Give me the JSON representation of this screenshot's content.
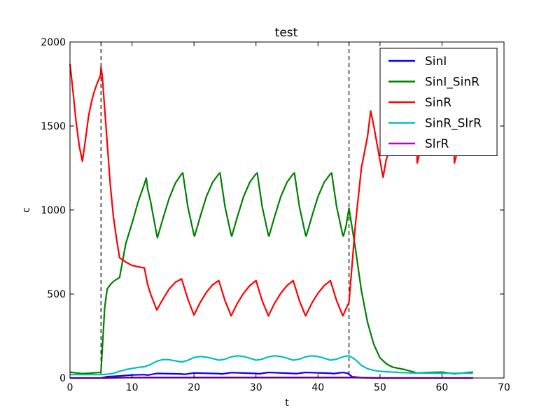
{
  "chart_data": {
    "type": "line",
    "title": "test",
    "xlabel": "t",
    "ylabel": "c",
    "xlim": [
      0,
      70
    ],
    "ylim": [
      0,
      2000
    ],
    "xticks": [
      0,
      10,
      20,
      30,
      40,
      50,
      60,
      70
    ],
    "yticks": [
      0,
      500,
      1000,
      1500,
      2000
    ],
    "grid": false,
    "legend_position": "top-right",
    "vlines": [
      5,
      45
    ],
    "series": [
      {
        "name": "SinI",
        "color": "#0000ff",
        "points": [
          [
            0,
            0
          ],
          [
            5,
            0
          ],
          [
            6,
            8
          ],
          [
            8,
            12
          ],
          [
            10,
            18
          ],
          [
            12,
            20
          ],
          [
            12.5,
            17
          ],
          [
            14,
            27
          ],
          [
            18,
            24
          ],
          [
            18.5,
            22
          ],
          [
            20,
            30
          ],
          [
            24,
            26
          ],
          [
            24.5,
            24
          ],
          [
            26,
            32
          ],
          [
            30,
            27
          ],
          [
            30.5,
            25
          ],
          [
            32,
            33
          ],
          [
            36,
            27
          ],
          [
            36.5,
            26
          ],
          [
            38,
            33
          ],
          [
            42,
            28
          ],
          [
            42.5,
            26
          ],
          [
            44,
            33
          ],
          [
            44.8,
            28
          ],
          [
            45.5,
            8
          ],
          [
            47,
            2
          ],
          [
            50,
            0
          ],
          [
            65,
            0
          ]
        ]
      },
      {
        "name": "SinI_SinR",
        "color": "#008000",
        "points": [
          [
            0,
            35
          ],
          [
            1,
            30
          ],
          [
            2,
            26
          ],
          [
            3,
            28
          ],
          [
            4,
            31
          ],
          [
            4.9,
            33
          ],
          [
            5,
            40
          ],
          [
            5.3,
            230
          ],
          [
            5.6,
            420
          ],
          [
            6,
            530
          ],
          [
            6.5,
            555
          ],
          [
            7,
            575
          ],
          [
            8,
            598
          ],
          [
            8.5,
            700
          ],
          [
            9,
            800
          ],
          [
            10,
            920
          ],
          [
            11,
            1050
          ],
          [
            12,
            1155
          ],
          [
            12.3,
            1190
          ],
          [
            12.5,
            1130
          ],
          [
            13,
            1050
          ],
          [
            14,
            850
          ],
          [
            14.1,
            835
          ],
          [
            15,
            950
          ],
          [
            16,
            1070
          ],
          [
            17,
            1160
          ],
          [
            18,
            1215
          ],
          [
            18.2,
            1220
          ],
          [
            19,
            1020
          ],
          [
            20,
            850
          ],
          [
            20.1,
            845
          ],
          [
            21,
            960
          ],
          [
            22,
            1080
          ],
          [
            23,
            1165
          ],
          [
            24,
            1215
          ],
          [
            24.2,
            1220
          ],
          [
            25,
            1020
          ],
          [
            26,
            850
          ],
          [
            26.1,
            845
          ],
          [
            27,
            960
          ],
          [
            28,
            1080
          ],
          [
            29,
            1165
          ],
          [
            30,
            1215
          ],
          [
            30.2,
            1220
          ],
          [
            31,
            1020
          ],
          [
            32,
            850
          ],
          [
            32.1,
            845
          ],
          [
            33,
            960
          ],
          [
            34,
            1080
          ],
          [
            35,
            1165
          ],
          [
            36,
            1215
          ],
          [
            36.2,
            1220
          ],
          [
            37,
            1020
          ],
          [
            38,
            850
          ],
          [
            38.1,
            845
          ],
          [
            39,
            960
          ],
          [
            40,
            1080
          ],
          [
            41,
            1165
          ],
          [
            42,
            1215
          ],
          [
            42.2,
            1220
          ],
          [
            43,
            1020
          ],
          [
            44,
            850
          ],
          [
            44.1,
            845
          ],
          [
            44.5,
            900
          ],
          [
            45,
            1010
          ],
          [
            46,
            780
          ],
          [
            47,
            520
          ],
          [
            48,
            330
          ],
          [
            49,
            200
          ],
          [
            50,
            120
          ],
          [
            51,
            85
          ],
          [
            52,
            65
          ],
          [
            54,
            50
          ],
          [
            56,
            30
          ],
          [
            58,
            33
          ],
          [
            60,
            35
          ],
          [
            62,
            25
          ],
          [
            65,
            35
          ]
        ]
      },
      {
        "name": "SinR",
        "color": "#ff0000",
        "points": [
          [
            0,
            1870
          ],
          [
            0.5,
            1700
          ],
          [
            1,
            1520
          ],
          [
            1.5,
            1380
          ],
          [
            2,
            1290
          ],
          [
            2.5,
            1420
          ],
          [
            3,
            1560
          ],
          [
            3.5,
            1650
          ],
          [
            4,
            1715
          ],
          [
            4.5,
            1765
          ],
          [
            4.9,
            1800
          ],
          [
            5,
            1850
          ],
          [
            5.2,
            1800
          ],
          [
            5.5,
            1650
          ],
          [
            6,
            1400
          ],
          [
            6.5,
            1150
          ],
          [
            7,
            960
          ],
          [
            7.5,
            830
          ],
          [
            8,
            715
          ],
          [
            9,
            690
          ],
          [
            10,
            670
          ],
          [
            11,
            662
          ],
          [
            12,
            655
          ],
          [
            12.5,
            560
          ],
          [
            13,
            500
          ],
          [
            14,
            405
          ],
          [
            15,
            470
          ],
          [
            16,
            530
          ],
          [
            17,
            570
          ],
          [
            18,
            590
          ],
          [
            19,
            470
          ],
          [
            20,
            375
          ],
          [
            21,
            450
          ],
          [
            22,
            510
          ],
          [
            23,
            555
          ],
          [
            24,
            580
          ],
          [
            25,
            460
          ],
          [
            26,
            370
          ],
          [
            27,
            445
          ],
          [
            28,
            505
          ],
          [
            29,
            550
          ],
          [
            30,
            580
          ],
          [
            31,
            460
          ],
          [
            32,
            370
          ],
          [
            33,
            445
          ],
          [
            34,
            505
          ],
          [
            35,
            550
          ],
          [
            36,
            580
          ],
          [
            37,
            460
          ],
          [
            38,
            370
          ],
          [
            39,
            445
          ],
          [
            40,
            505
          ],
          [
            41,
            550
          ],
          [
            42,
            580
          ],
          [
            43,
            460
          ],
          [
            44,
            370
          ],
          [
            45,
            450
          ],
          [
            46,
            900
          ],
          [
            47,
            1250
          ],
          [
            48,
            1440
          ],
          [
            48.5,
            1590
          ],
          [
            49,
            1500
          ],
          [
            50,
            1295
          ],
          [
            50.5,
            1195
          ],
          [
            51,
            1300
          ],
          [
            52,
            1400
          ],
          [
            53,
            1460
          ],
          [
            54,
            1500
          ],
          [
            55,
            1520
          ],
          [
            55.8,
            1530
          ],
          [
            56,
            1280
          ],
          [
            57,
            1420
          ],
          [
            58,
            1500
          ],
          [
            59,
            1520
          ],
          [
            60,
            1530
          ],
          [
            61,
            1535
          ],
          [
            61.8,
            1540
          ],
          [
            62,
            1280
          ],
          [
            63,
            1420
          ],
          [
            64,
            1500
          ],
          [
            65,
            1520
          ]
        ]
      },
      {
        "name": "SinR_SlrR",
        "color": "#00bfbf",
        "points": [
          [
            0,
            20
          ],
          [
            5,
            20
          ],
          [
            6,
            22
          ],
          [
            7,
            28
          ],
          [
            8,
            40
          ],
          [
            9,
            50
          ],
          [
            10,
            57
          ],
          [
            11,
            63
          ],
          [
            12,
            67
          ],
          [
            13,
            80
          ],
          [
            14,
            100
          ],
          [
            15,
            110
          ],
          [
            16,
            109
          ],
          [
            17,
            102
          ],
          [
            18,
            95
          ],
          [
            19,
            105
          ],
          [
            20,
            122
          ],
          [
            21,
            128
          ],
          [
            22,
            124
          ],
          [
            23,
            116
          ],
          [
            24,
            106
          ],
          [
            25,
            112
          ],
          [
            26,
            126
          ],
          [
            27,
            132
          ],
          [
            28,
            128
          ],
          [
            29,
            118
          ],
          [
            30,
            106
          ],
          [
            31,
            112
          ],
          [
            32,
            126
          ],
          [
            33,
            132
          ],
          [
            34,
            128
          ],
          [
            35,
            118
          ],
          [
            36,
            106
          ],
          [
            37,
            112
          ],
          [
            38,
            126
          ],
          [
            39,
            132
          ],
          [
            40,
            128
          ],
          [
            41,
            118
          ],
          [
            42,
            106
          ],
          [
            43,
            112
          ],
          [
            44,
            126
          ],
          [
            45,
            133
          ],
          [
            46,
            110
          ],
          [
            47,
            75
          ],
          [
            48,
            55
          ],
          [
            49,
            45
          ],
          [
            50,
            40
          ],
          [
            52,
            35
          ],
          [
            55,
            30
          ],
          [
            60,
            28
          ],
          [
            65,
            28
          ]
        ]
      },
      {
        "name": "SlrR",
        "color": "#bf00bf",
        "points": [
          [
            0,
            0
          ],
          [
            5,
            0
          ],
          [
            10,
            3
          ],
          [
            20,
            4
          ],
          [
            30,
            4
          ],
          [
            40,
            4
          ],
          [
            45,
            4
          ],
          [
            50,
            0
          ],
          [
            65,
            0
          ]
        ]
      }
    ]
  }
}
